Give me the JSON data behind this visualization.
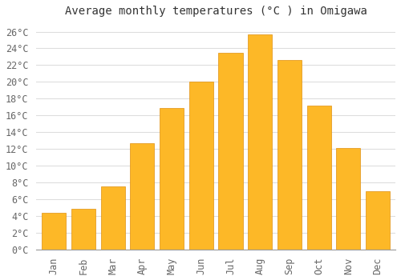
{
  "title": "Average monthly temperatures (°C ) in Omigawa",
  "months": [
    "Jan",
    "Feb",
    "Mar",
    "Apr",
    "May",
    "Jun",
    "Jul",
    "Aug",
    "Sep",
    "Oct",
    "Nov",
    "Dec"
  ],
  "values": [
    4.4,
    4.9,
    7.5,
    12.7,
    16.9,
    20.0,
    23.5,
    25.7,
    22.6,
    17.2,
    12.1,
    7.0
  ],
  "bar_color": "#FDB827",
  "bar_edge_color": "#E09010",
  "background_color": "#FFFFFF",
  "plot_bg_color": "#FFFFFF",
  "grid_color": "#DDDDDD",
  "text_color": "#666666",
  "ylim": [
    0,
    27
  ],
  "yticks": [
    0,
    2,
    4,
    6,
    8,
    10,
    12,
    14,
    16,
    18,
    20,
    22,
    24,
    26
  ],
  "title_fontsize": 10,
  "tick_fontsize": 8.5
}
